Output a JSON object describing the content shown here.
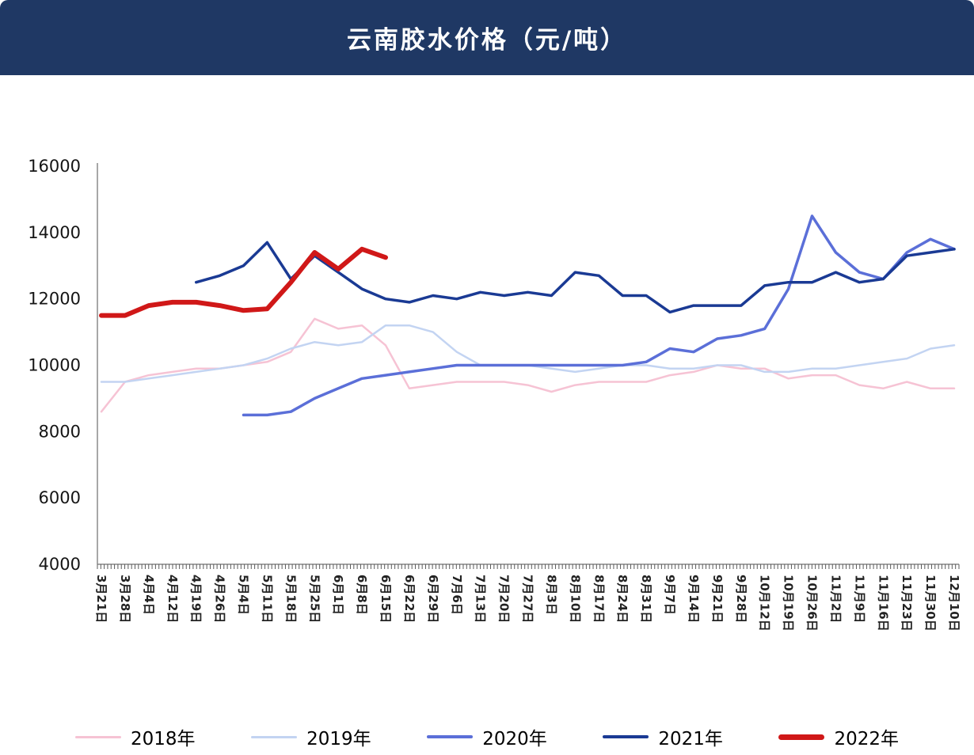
{
  "header": {
    "title": "云南胶水价格（元/吨）",
    "background_color": "#1F3864",
    "text_color": "#FFFFFF"
  },
  "chart_data": {
    "type": "line",
    "title": "云南胶水价格（元/吨）",
    "xlabel": "",
    "ylabel": "",
    "ylim": [
      4000,
      16000
    ],
    "y_ticks": [
      4000,
      6000,
      8000,
      10000,
      12000,
      14000,
      16000
    ],
    "grid": false,
    "legend_position": "bottom",
    "x_tick_style": "rotated-90-daily-minor-ticks",
    "categories": [
      "3月21日",
      "3月28日",
      "4月4日",
      "4月12日",
      "4月19日",
      "4月26日",
      "5月4日",
      "5月11日",
      "5月18日",
      "5月25日",
      "6月1日",
      "6月8日",
      "6月15日",
      "6月22日",
      "6月29日",
      "7月6日",
      "7月13日",
      "7月20日",
      "7月27日",
      "8月3日",
      "8月10日",
      "8月17日",
      "8月24日",
      "8月31日",
      "9月7日",
      "9月14日",
      "9月21日",
      "9月28日",
      "10月12日",
      "10月19日",
      "10月26日",
      "11月2日",
      "11月9日",
      "11月16日",
      "11月23日",
      "11月30日",
      "12月10日"
    ],
    "series": [
      {
        "name": "2018年",
        "color": "#F6C3D4",
        "width": 2.5,
        "values": [
          8600,
          9500,
          9700,
          9800,
          9900,
          9900,
          10000,
          10100,
          10400,
          11400,
          11100,
          11200,
          10600,
          9300,
          9400,
          9500,
          9500,
          9500,
          9400,
          9200,
          9400,
          9500,
          9500,
          9500,
          9700,
          9800,
          10000,
          9900,
          9900,
          9600,
          9700,
          9700,
          9400,
          9300,
          9500,
          9300,
          9300
        ]
      },
      {
        "name": "2019年",
        "color": "#C3D4F2",
        "width": 2.5,
        "values": [
          9500,
          9500,
          9600,
          9700,
          9800,
          9900,
          10000,
          10200,
          10500,
          10700,
          10600,
          10700,
          11200,
          11200,
          11000,
          10400,
          10000,
          10000,
          10000,
          9900,
          9800,
          9900,
          10000,
          10000,
          9900,
          9900,
          10000,
          10000,
          9800,
          9800,
          9900,
          9900,
          10000,
          10100,
          10200,
          10500,
          10600
        ]
      },
      {
        "name": "2020年",
        "color": "#5B6FD8",
        "width": 3.5,
        "values": [
          null,
          null,
          null,
          null,
          null,
          null,
          8500,
          8500,
          8600,
          9000,
          9300,
          9600,
          9700,
          9800,
          9900,
          10000,
          10000,
          10000,
          10000,
          10000,
          10000,
          10000,
          10000,
          10100,
          10500,
          10400,
          10800,
          10900,
          11100,
          12300,
          14500,
          13400,
          12800,
          12600,
          13400,
          13800,
          13500
        ]
      },
      {
        "name": "2021年",
        "color": "#1A3A94",
        "width": 3.5,
        "values": [
          null,
          null,
          null,
          null,
          12500,
          12700,
          13000,
          13700,
          12600,
          13300,
          12800,
          12300,
          12000,
          11900,
          12100,
          12000,
          12200,
          12100,
          12200,
          12100,
          12800,
          12700,
          12100,
          12100,
          11600,
          11800,
          11800,
          11800,
          12400,
          12500,
          12500,
          12800,
          12500,
          12600,
          13300,
          13400,
          13500
        ]
      },
      {
        "name": "2022年",
        "color": "#D01818",
        "width": 6,
        "values": [
          11500,
          11500,
          11800,
          11900,
          11900,
          11800,
          11650,
          11700,
          12500,
          13400,
          12900,
          13500,
          13250,
          null,
          null,
          null,
          null,
          null,
          null,
          null,
          null,
          null,
          null,
          null,
          null,
          null,
          null,
          null,
          null,
          null,
          null,
          null,
          null,
          null,
          null,
          null,
          null
        ]
      }
    ]
  }
}
